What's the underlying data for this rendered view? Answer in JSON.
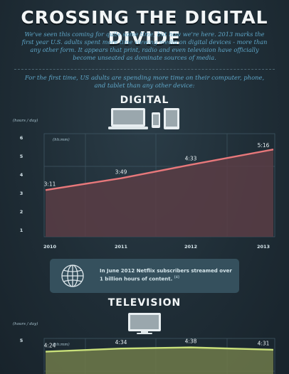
{
  "header": {
    "title": "CROSSING THE DIGITAL DIVIDE",
    "intro": "We've seen this coming for quite some time, but now we're here. 2013 marks the first year U.S. adults spent more time viewing media on digital devices - more than any other form. It appears that print, radio and even television have officially become unseated as dominate sources of media.",
    "lead": "For the first time, US adults are spending more time on their computer, phone, and tablet than any other device:"
  },
  "colors": {
    "digital_line": "#e8787b",
    "digital_fill": "#5b3d45",
    "tv_line": "#c9e07a",
    "tv_fill": "#6e7a4a"
  },
  "icons": [
    "laptop-icon",
    "phone-icon",
    "tablet-icon",
    "globe-icon",
    "tv-icon"
  ],
  "note": {
    "text": "In June 2012 Netflix subscribers streamed over 1 billion hours of content.",
    "ref": "[4]"
  },
  "chart_data": [
    {
      "type": "area",
      "section_title": "DIGITAL",
      "ylabel": "(hours / day)",
      "unit_label": "(hh:mm)",
      "x": [
        "2010",
        "2011",
        "2012",
        "2013"
      ],
      "y": [
        3.18,
        3.82,
        4.55,
        5.27
      ],
      "data_labels": [
        "3:11",
        "3:49",
        "4:33",
        "5:16"
      ],
      "yticks": [
        "1",
        "2",
        "3",
        "4",
        "5",
        "6"
      ],
      "ylim": [
        1,
        6
      ],
      "grid": true
    },
    {
      "type": "area",
      "section_title": "TELEVISION",
      "ylabel": "(hours / day)",
      "unit_label": "(hh:mm)",
      "x": [
        "2010",
        "2011",
        "2012",
        "2013"
      ],
      "y": [
        4.4,
        4.57,
        4.63,
        4.52
      ],
      "data_labels": [
        "4:24",
        "4:34",
        "4:38",
        "4:31"
      ],
      "yticks": [
        "5"
      ],
      "ylim": [
        1,
        6
      ],
      "grid": true
    }
  ]
}
